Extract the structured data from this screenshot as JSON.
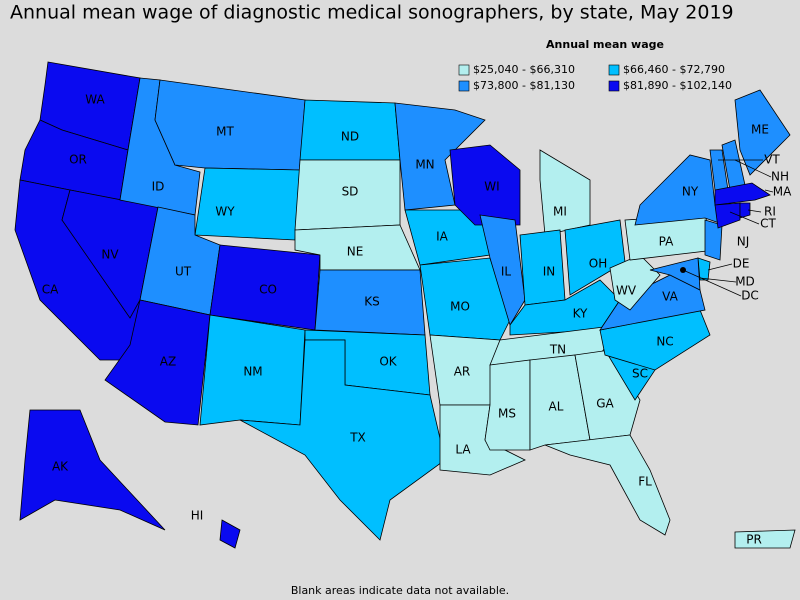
{
  "title": "Annual mean wage of diagnostic medical sonographers, by state, May 2019",
  "legend": {
    "title": "Annual mean wage",
    "entries": [
      {
        "label": "$25,040 - $66,310",
        "color": "#b3efef"
      },
      {
        "label": "$66,460 - $72,790",
        "color": "#00bfff"
      },
      {
        "label": "$73,800 - $81,130",
        "color": "#1e8fff"
      },
      {
        "label": "$81,890 - $102,140",
        "color": "#0a0af0"
      }
    ]
  },
  "states": [
    {
      "label": "WA",
      "bin": 3
    },
    {
      "label": "OR",
      "bin": 3
    },
    {
      "label": "CA",
      "bin": 3
    },
    {
      "label": "NV",
      "bin": 3
    },
    {
      "label": "ID",
      "bin": 2
    },
    {
      "label": "MT",
      "bin": 2
    },
    {
      "label": "WY",
      "bin": 1
    },
    {
      "label": "UT",
      "bin": 2
    },
    {
      "label": "AZ",
      "bin": 3
    },
    {
      "label": "CO",
      "bin": 3
    },
    {
      "label": "NM",
      "bin": 1
    },
    {
      "label": "ND",
      "bin": 1
    },
    {
      "label": "SD",
      "bin": 0
    },
    {
      "label": "NE",
      "bin": 0
    },
    {
      "label": "KS",
      "bin": 2
    },
    {
      "label": "OK",
      "bin": 1
    },
    {
      "label": "TX",
      "bin": 1
    },
    {
      "label": "MN",
      "bin": 2
    },
    {
      "label": "IA",
      "bin": 1
    },
    {
      "label": "MO",
      "bin": 1
    },
    {
      "label": "AR",
      "bin": 0
    },
    {
      "label": "LA",
      "bin": 0
    },
    {
      "label": "WI",
      "bin": 3
    },
    {
      "label": "IL",
      "bin": 2
    },
    {
      "label": "MI",
      "bin": 0
    },
    {
      "label": "IN",
      "bin": 1
    },
    {
      "label": "OH",
      "bin": 1
    },
    {
      "label": "KY",
      "bin": 1
    },
    {
      "label": "TN",
      "bin": 0
    },
    {
      "label": "MS",
      "bin": 0
    },
    {
      "label": "AL",
      "bin": 0
    },
    {
      "label": "GA",
      "bin": 0
    },
    {
      "label": "FL",
      "bin": 0
    },
    {
      "label": "SC",
      "bin": 1
    },
    {
      "label": "NC",
      "bin": 1
    },
    {
      "label": "VA",
      "bin": 2
    },
    {
      "label": "WV",
      "bin": 0
    },
    {
      "label": "PA",
      "bin": 0
    },
    {
      "label": "NY",
      "bin": 2
    },
    {
      "label": "NJ",
      "bin": 2
    },
    {
      "label": "DE",
      "bin": 1
    },
    {
      "label": "MD",
      "bin": 2
    },
    {
      "label": "VT",
      "bin": 2
    },
    {
      "label": "NH",
      "bin": 2
    },
    {
      "label": "ME",
      "bin": 2
    },
    {
      "label": "MA",
      "bin": 3
    },
    {
      "label": "CT",
      "bin": 3
    },
    {
      "label": "RI",
      "bin": 3
    },
    {
      "label": "AK",
      "bin": 3
    },
    {
      "label": "HI",
      "bin": 3
    },
    {
      "label": "PR",
      "bin": 0
    },
    {
      "label": "DC",
      "bin": 0
    }
  ],
  "footnote": "Blank areas indicate data not available."
}
